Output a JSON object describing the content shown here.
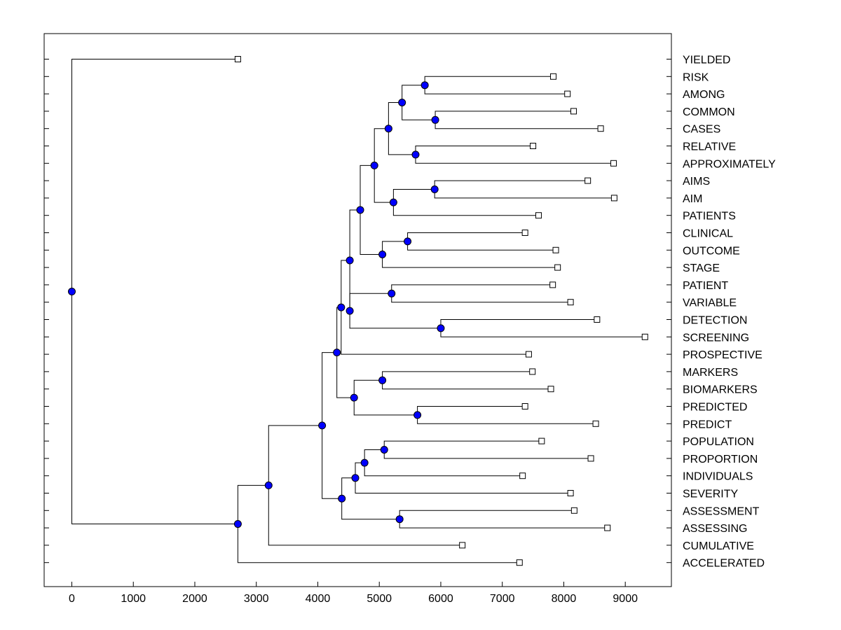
{
  "chart_data": {
    "type": "dendrogram",
    "title": "",
    "xlabel": "",
    "ylabel": "",
    "xlim": [
      -450,
      9750
    ],
    "xticks": [
      0,
      1000,
      2000,
      3000,
      4000,
      5000,
      6000,
      7000,
      8000,
      9000
    ],
    "xtick_labels": [
      "0",
      "1000",
      "2000",
      "3000",
      "4000",
      "5000",
      "6000",
      "7000",
      "8000",
      "9000"
    ],
    "colors": {
      "node": "#0000ff",
      "line": "#000000",
      "leaf_fill": "#ffffff"
    },
    "leaves": [
      {
        "label": "YIELDED",
        "x": 2700
      },
      {
        "label": "RISK",
        "x": 7830
      },
      {
        "label": "AMONG",
        "x": 8060
      },
      {
        "label": "COMMON",
        "x": 8160
      },
      {
        "label": "CASES",
        "x": 8600
      },
      {
        "label": "RELATIVE",
        "x": 7500
      },
      {
        "label": "APPROXIMATELY",
        "x": 8810
      },
      {
        "label": "AIMS",
        "x": 8390
      },
      {
        "label": "AIM",
        "x": 8820
      },
      {
        "label": "PATIENTS",
        "x": 7590
      },
      {
        "label": "CLINICAL",
        "x": 7370
      },
      {
        "label": "OUTCOME",
        "x": 7870
      },
      {
        "label": "STAGE",
        "x": 7900
      },
      {
        "label": "PATIENT",
        "x": 7820
      },
      {
        "label": "VARIABLE",
        "x": 8110
      },
      {
        "label": "DETECTION",
        "x": 8540
      },
      {
        "label": "SCREENING",
        "x": 9320
      },
      {
        "label": "PROSPECTIVE",
        "x": 7430
      },
      {
        "label": "MARKERS",
        "x": 7490
      },
      {
        "label": "BIOMARKERS",
        "x": 7790
      },
      {
        "label": "PREDICTED",
        "x": 7370
      },
      {
        "label": "PREDICT",
        "x": 8520
      },
      {
        "label": "POPULATION",
        "x": 7640
      },
      {
        "label": "PROPORTION",
        "x": 8440
      },
      {
        "label": "INDIVIDUALS",
        "x": 7330
      },
      {
        "label": "SEVERITY",
        "x": 8110
      },
      {
        "label": "ASSESSMENT",
        "x": 8170
      },
      {
        "label": "ASSESSING",
        "x": 8710
      },
      {
        "label": "CUMULATIVE",
        "x": 6350
      },
      {
        "label": "ACCELERATED",
        "x": 7280
      }
    ],
    "merges": [
      {
        "id": "n1",
        "x": 5740,
        "children": [
          1,
          2
        ]
      },
      {
        "id": "n2",
        "x": 5910,
        "children": [
          3,
          4
        ]
      },
      {
        "id": "n3",
        "x": 5370,
        "children": [
          "n1",
          "n2"
        ]
      },
      {
        "id": "n4",
        "x": 5590,
        "children": [
          5,
          6
        ]
      },
      {
        "id": "n5",
        "x": 5150,
        "children": [
          "n3",
          "n4"
        ]
      },
      {
        "id": "n6",
        "x": 5900,
        "children": [
          7,
          8
        ]
      },
      {
        "id": "n7",
        "x": 5230,
        "children": [
          "n6",
          9
        ]
      },
      {
        "id": "n8",
        "x": 4920,
        "children": [
          "n5",
          "n7"
        ]
      },
      {
        "id": "n9",
        "x": 5460,
        "children": [
          10,
          11
        ]
      },
      {
        "id": "n10",
        "x": 5050,
        "children": [
          "n9",
          12
        ]
      },
      {
        "id": "n11",
        "x": 4690,
        "children": [
          "n8",
          "n10"
        ]
      },
      {
        "id": "n12",
        "x": 5200,
        "children": [
          13,
          14
        ]
      },
      {
        "id": "n13",
        "x": 6000,
        "children": [
          15,
          16
        ]
      },
      {
        "id": "n14",
        "x": 4520,
        "children": [
          "n12",
          "n13"
        ]
      },
      {
        "id": "n15",
        "x": 4520,
        "children": [
          "n11",
          "n14"
        ]
      },
      {
        "id": "n16",
        "x": 4380,
        "children": [
          "n15",
          17
        ]
      },
      {
        "id": "n17",
        "x": 5050,
        "children": [
          18,
          19
        ]
      },
      {
        "id": "n18",
        "x": 5620,
        "children": [
          20,
          21
        ]
      },
      {
        "id": "n19",
        "x": 4590,
        "children": [
          "n17",
          "n18"
        ]
      },
      {
        "id": "n20",
        "x": 4310,
        "children": [
          "n16",
          "n19"
        ]
      },
      {
        "id": "n21",
        "x": 5080,
        "children": [
          22,
          23
        ]
      },
      {
        "id": "n22",
        "x": 4760,
        "children": [
          "n21",
          24
        ]
      },
      {
        "id": "n23",
        "x": 4610,
        "children": [
          "n22",
          25
        ]
      },
      {
        "id": "n24",
        "x": 5330,
        "children": [
          26,
          27
        ]
      },
      {
        "id": "n25",
        "x": 4390,
        "children": [
          "n23",
          "n24"
        ]
      },
      {
        "id": "n26",
        "x": 4070,
        "children": [
          "n20",
          "n25"
        ]
      },
      {
        "id": "n27",
        "x": 3200,
        "children": [
          "n26",
          28
        ]
      },
      {
        "id": "n28",
        "x": 2700,
        "children": [
          "n27",
          29
        ]
      },
      {
        "id": "n29",
        "x": 0,
        "children": [
          0,
          "n28"
        ]
      }
    ]
  }
}
